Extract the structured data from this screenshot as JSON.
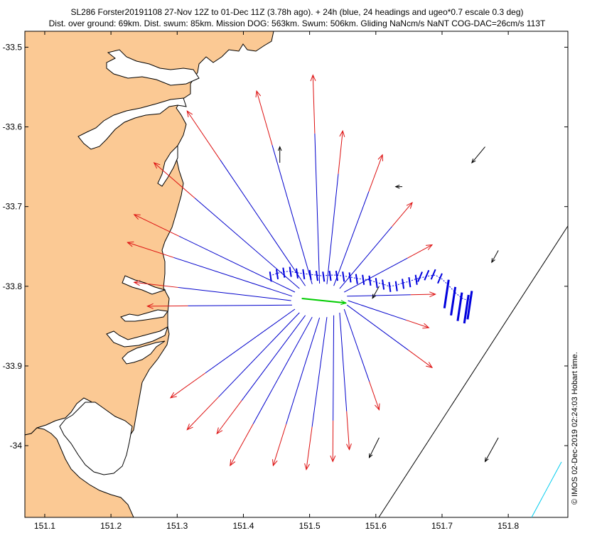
{
  "chart_data": {
    "type": "scatter",
    "title": "SL286 Forster20191108 27-Nov 12Z to 01-Dec 11Z (3.78h ago). + 24h (blue, 24 headings and ugeo*0.7 escale 0.3 deg)",
    "subtitle": "Dist. over ground: 69km. Dist. swum: 85km. Mission DOG: 563km. Swum: 506km. Gliding NaNcm/s NaNT COG-DAC=26cm/s 113T",
    "side_note": "© IMOS 02-Dec-2019 02:24:03 Hobart time.",
    "xlim": [
      151.07,
      151.89
    ],
    "ylim": [
      -34.09,
      -33.48
    ],
    "xticks": [
      "151.1",
      "151.2",
      "151.3",
      "151.4",
      "151.5",
      "151.6",
      "151.7",
      "151.8"
    ],
    "xtick_values": [
      151.1,
      151.2,
      151.3,
      151.4,
      151.5,
      151.6,
      151.7,
      151.8
    ],
    "yticks": [
      "-33.5",
      "-33.6",
      "-33.7",
      "-33.8",
      "-33.9",
      "-34"
    ],
    "ytick_values": [
      -33.5,
      -33.6,
      -33.7,
      -33.8,
      -33.9,
      -34.0
    ],
    "colors": {
      "land": "#fbc994",
      "forecast_path": "#0000cc",
      "forecast_head": "#dd1111",
      "current_heading": "#00cc00",
      "glider_track": "#0000dd",
      "currents": "#000000",
      "shelf_line": "#000000",
      "cyan_line": "#00ccee"
    },
    "glider_position": [
      151.515,
      -33.818
    ],
    "current_heading_end": [
      151.555,
      -33.821
    ],
    "forecast_headings_deg": [
      0,
      15,
      30,
      45,
      60,
      75,
      90,
      105,
      120,
      135,
      150,
      165,
      180,
      195,
      210,
      225,
      240,
      255,
      270,
      285,
      300,
      315,
      330,
      345
    ],
    "forecast_arrows": [
      {
        "heading": 0,
        "end": [
          151.505,
          -33.535
        ]
      },
      {
        "heading": 15,
        "end": [
          151.55,
          -33.605
        ]
      },
      {
        "heading": 30,
        "end": [
          151.61,
          -33.635
        ]
      },
      {
        "heading": 45,
        "end": [
          151.655,
          -33.695
        ]
      },
      {
        "heading": 60,
        "end": [
          151.685,
          -33.748
        ]
      },
      {
        "heading": 75,
        "end": [
          151.69,
          -33.81
        ]
      },
      {
        "heading": 90,
        "end": [
          151.68,
          -33.852
        ]
      },
      {
        "heading": 105,
        "end": [
          151.685,
          -33.902
        ]
      },
      {
        "heading": 120,
        "end": [
          151.605,
          -33.955
        ]
      },
      {
        "heading": 135,
        "end": [
          151.56,
          -34.005
        ]
      },
      {
        "heading": 150,
        "end": [
          151.535,
          -34.02
        ]
      },
      {
        "heading": 165,
        "end": [
          151.495,
          -34.03
        ]
      },
      {
        "heading": 180,
        "end": [
          151.445,
          -34.025
        ]
      },
      {
        "heading": 195,
        "end": [
          151.38,
          -34.025
        ]
      },
      {
        "heading": 210,
        "end": [
          151.36,
          -33.985
        ]
      },
      {
        "heading": 225,
        "end": [
          151.315,
          -33.98
        ]
      },
      {
        "heading": 240,
        "end": [
          151.29,
          -33.94
        ]
      },
      {
        "heading": 255,
        "end": [
          151.255,
          -33.825
        ]
      },
      {
        "heading": 270,
        "end": [
          151.235,
          -33.795
        ]
      },
      {
        "heading": 285,
        "end": [
          151.225,
          -33.745
        ]
      },
      {
        "heading": 300,
        "end": [
          151.235,
          -33.71
        ]
      },
      {
        "heading": 315,
        "end": [
          151.265,
          -33.645
        ]
      },
      {
        "heading": 330,
        "end": [
          151.315,
          -33.58
        ]
      },
      {
        "heading": 345,
        "end": [
          151.42,
          -33.555
        ]
      }
    ],
    "glider_track": [
      [
        151.44,
        -33.787
      ],
      [
        151.45,
        -33.784
      ],
      [
        151.46,
        -33.782
      ],
      [
        151.47,
        -33.781
      ],
      [
        151.48,
        -33.783
      ],
      [
        151.49,
        -33.784
      ],
      [
        151.5,
        -33.785
      ],
      [
        151.51,
        -33.786
      ],
      [
        151.52,
        -33.787
      ],
      [
        151.53,
        -33.786
      ],
      [
        151.54,
        -33.786
      ],
      [
        151.55,
        -33.787
      ],
      [
        151.56,
        -33.788
      ],
      [
        151.57,
        -33.79
      ],
      [
        151.58,
        -33.791
      ],
      [
        151.59,
        -33.792
      ],
      [
        151.6,
        -33.795
      ],
      [
        151.61,
        -33.797
      ],
      [
        151.62,
        -33.8
      ],
      [
        151.63,
        -33.799
      ],
      [
        151.64,
        -33.796
      ],
      [
        151.65,
        -33.794
      ],
      [
        151.66,
        -33.791
      ],
      [
        151.67,
        -33.789
      ],
      [
        151.68,
        -33.787
      ],
      [
        151.69,
        -33.786
      ],
      [
        151.7,
        -33.791
      ],
      [
        151.71,
        -33.799
      ],
      [
        151.72,
        -33.808
      ],
      [
        151.73,
        -33.815
      ],
      [
        151.74,
        -33.818
      ],
      [
        151.745,
        -33.813
      ]
    ],
    "current_arrows": [
      {
        "at": [
          151.765,
          -33.625
        ],
        "u": -0.02,
        "v": -0.02
      },
      {
        "at": [
          151.64,
          -33.675
        ],
        "u": -0.01,
        "v": 0.0
      },
      {
        "at": [
          151.455,
          -33.645
        ],
        "u": 0.0,
        "v": 0.02
      },
      {
        "at": [
          151.605,
          -33.8
        ],
        "u": -0.01,
        "v": -0.015
      },
      {
        "at": [
          151.785,
          -33.755
        ],
        "u": -0.01,
        "v": -0.015
      },
      {
        "at": [
          151.605,
          -33.99
        ],
        "u": -0.015,
        "v": -0.025
      },
      {
        "at": [
          151.785,
          -33.99
        ],
        "u": -0.02,
        "v": -0.03
      },
      {
        "at": [
          151.4,
          -33.805
        ],
        "u": 0.0,
        "v": 0.0
      }
    ]
  }
}
